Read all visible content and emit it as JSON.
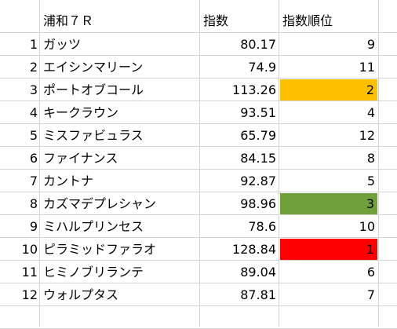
{
  "header": {
    "race": "浦和７Ｒ",
    "index": "指数",
    "rank": "指数順位"
  },
  "rows": [
    {
      "no": "1",
      "name": "ガッツ",
      "index": "80.17",
      "rank": "9",
      "highlight": ""
    },
    {
      "no": "2",
      "name": "エイシンマリーン",
      "index": "74.9",
      "rank": "11",
      "highlight": ""
    },
    {
      "no": "3",
      "name": "ポートオブコール",
      "index": "113.26",
      "rank": "2",
      "highlight": "#ffc000"
    },
    {
      "no": "4",
      "name": "キークラウン",
      "index": "93.51",
      "rank": "4",
      "highlight": ""
    },
    {
      "no": "5",
      "name": "ミスファビュラス",
      "index": "65.79",
      "rank": "12",
      "highlight": ""
    },
    {
      "no": "6",
      "name": "ファイナンス",
      "index": "84.15",
      "rank": "8",
      "highlight": ""
    },
    {
      "no": "7",
      "name": "カントナ",
      "index": "92.87",
      "rank": "5",
      "highlight": ""
    },
    {
      "no": "8",
      "name": "カズマデプレシャン",
      "index": "98.96",
      "rank": "3",
      "highlight": "#70a03a"
    },
    {
      "no": "9",
      "name": "ミハルプリンセス",
      "index": "78.6",
      "rank": "10",
      "highlight": ""
    },
    {
      "no": "10",
      "name": "ピラミッドファラオ",
      "index": "128.84",
      "rank": "1",
      "highlight": "#ff0000"
    },
    {
      "no": "11",
      "name": "ヒミノブリランテ",
      "index": "89.04",
      "rank": "6",
      "highlight": ""
    },
    {
      "no": "12",
      "name": "ウォルプタス",
      "index": "87.81",
      "rank": "7",
      "highlight": ""
    }
  ]
}
